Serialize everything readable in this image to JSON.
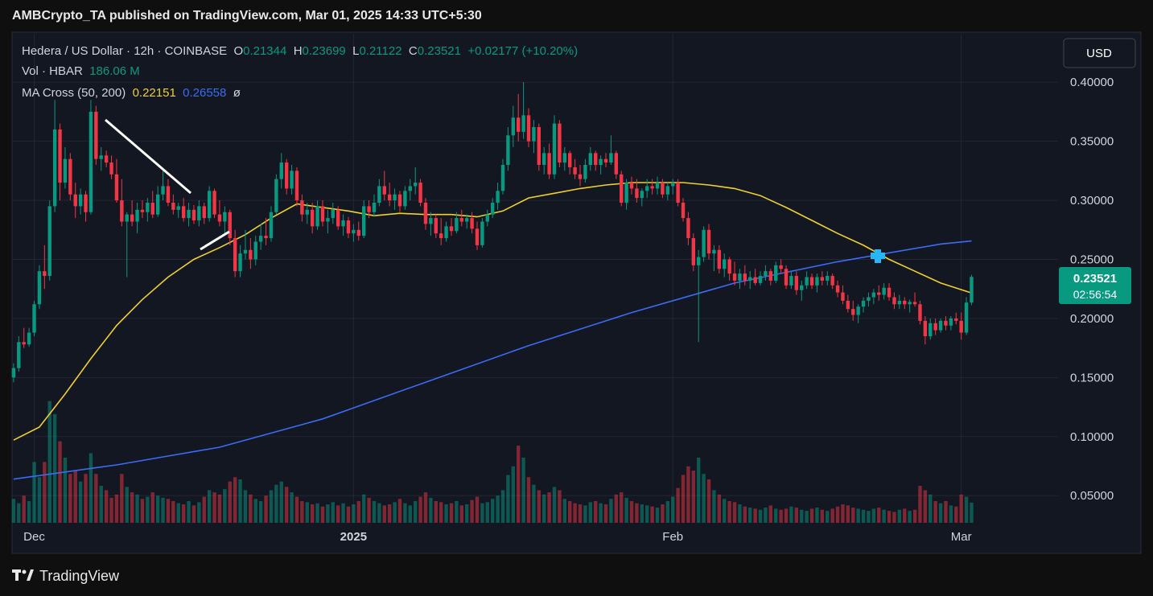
{
  "header": {
    "publisher": "AMBCrypto_TA published on TradingView.com, Mar 01, 2025 14:33 UTC+5:30",
    "currency_button": "USD",
    "logo": "TradingView"
  },
  "chart_data": {
    "type": "candlestick",
    "symbol": "Hedera / US Dollar · 12h · COINBASE",
    "ohlc_letters": [
      "O",
      "H",
      "L",
      "C"
    ],
    "change_label": "+0.02177 (+10.20%)",
    "volume_title": "Vol · HBAR",
    "volume_value_label": "186.06 M",
    "ma_title": "MA Cross (50, 200)",
    "ma_flag": "ø",
    "countdown": "02:56:54",
    "up_color": "#089981",
    "down_color": "#f23645",
    "xlim": [
      -0.3,
      202.8
    ],
    "xticks": [
      {
        "value": 4,
        "label": "Dec"
      },
      {
        "value": 66,
        "label": "2025"
      },
      {
        "value": 128,
        "label": "Feb"
      },
      {
        "value": 184,
        "label": "Mar"
      }
    ],
    "ylim": [
      0.027,
      0.441
    ],
    "yticks": [
      {
        "value": 0.05,
        "label": "0.05000"
      },
      {
        "value": 0.1,
        "label": "0.10000"
      },
      {
        "value": 0.15,
        "label": "0.15000"
      },
      {
        "value": 0.2,
        "label": "0.20000"
      },
      {
        "value": 0.25,
        "label": "0.25000"
      },
      {
        "value": 0.3,
        "label": "0.30000"
      },
      {
        "value": 0.35,
        "label": "0.35000"
      },
      {
        "value": 0.4,
        "label": "0.40000"
      }
    ],
    "grid": true,
    "volume_ylim": [
      0,
      4500
    ],
    "candles": [
      [
        0.15,
        0.162,
        0.146,
        0.158
      ],
      [
        0.158,
        0.185,
        0.155,
        0.18
      ],
      [
        0.18,
        0.192,
        0.175,
        0.178
      ],
      [
        0.178,
        0.192,
        0.176,
        0.188
      ],
      [
        0.188,
        0.215,
        0.185,
        0.212
      ],
      [
        0.212,
        0.245,
        0.208,
        0.24
      ],
      [
        0.24,
        0.262,
        0.225,
        0.236
      ],
      [
        0.236,
        0.3,
        0.232,
        0.295
      ],
      [
        0.295,
        0.385,
        0.29,
        0.36
      ],
      [
        0.36,
        0.365,
        0.3,
        0.315
      ],
      [
        0.315,
        0.345,
        0.31,
        0.335
      ],
      [
        0.335,
        0.34,
        0.3,
        0.305
      ],
      [
        0.305,
        0.315,
        0.285,
        0.295
      ],
      [
        0.295,
        0.31,
        0.288,
        0.305
      ],
      [
        0.305,
        0.308,
        0.282,
        0.29
      ],
      [
        0.29,
        0.385,
        0.288,
        0.375
      ],
      [
        0.375,
        0.38,
        0.33,
        0.335
      ],
      [
        0.335,
        0.345,
        0.325,
        0.338
      ],
      [
        0.338,
        0.342,
        0.328,
        0.332
      ],
      [
        0.332,
        0.338,
        0.318,
        0.322
      ],
      [
        0.322,
        0.335,
        0.298,
        0.3
      ],
      [
        0.3,
        0.318,
        0.278,
        0.282
      ],
      [
        0.282,
        0.29,
        0.235,
        0.288
      ],
      [
        0.288,
        0.3,
        0.278,
        0.282
      ],
      [
        0.282,
        0.298,
        0.272,
        0.292
      ],
      [
        0.292,
        0.3,
        0.285,
        0.29
      ],
      [
        0.29,
        0.302,
        0.282,
        0.298
      ],
      [
        0.298,
        0.308,
        0.285,
        0.288
      ],
      [
        0.288,
        0.312,
        0.286,
        0.305
      ],
      [
        0.305,
        0.325,
        0.3,
        0.312
      ],
      [
        0.312,
        0.318,
        0.295,
        0.298
      ],
      [
        0.298,
        0.305,
        0.288,
        0.292
      ],
      [
        0.292,
        0.298,
        0.285,
        0.295
      ],
      [
        0.295,
        0.302,
        0.282,
        0.285
      ],
      [
        0.285,
        0.298,
        0.278,
        0.292
      ],
      [
        0.292,
        0.296,
        0.28,
        0.283
      ],
      [
        0.283,
        0.3,
        0.278,
        0.295
      ],
      [
        0.295,
        0.298,
        0.28,
        0.285
      ],
      [
        0.285,
        0.312,
        0.282,
        0.308
      ],
      [
        0.308,
        0.31,
        0.285,
        0.288
      ],
      [
        0.288,
        0.3,
        0.278,
        0.282
      ],
      [
        0.282,
        0.295,
        0.27,
        0.29
      ],
      [
        0.29,
        0.292,
        0.262,
        0.268
      ],
      [
        0.268,
        0.275,
        0.235,
        0.24
      ],
      [
        0.24,
        0.262,
        0.235,
        0.255
      ],
      [
        0.255,
        0.275,
        0.25,
        0.258
      ],
      [
        0.258,
        0.268,
        0.242,
        0.25
      ],
      [
        0.25,
        0.27,
        0.245,
        0.265
      ],
      [
        0.265,
        0.28,
        0.258,
        0.27
      ],
      [
        0.27,
        0.285,
        0.262,
        0.268
      ],
      [
        0.268,
        0.295,
        0.265,
        0.29
      ],
      [
        0.29,
        0.322,
        0.288,
        0.318
      ],
      [
        0.318,
        0.34,
        0.31,
        0.332
      ],
      [
        0.332,
        0.335,
        0.305,
        0.31
      ],
      [
        0.31,
        0.33,
        0.305,
        0.325
      ],
      [
        0.325,
        0.328,
        0.295,
        0.3
      ],
      [
        0.3,
        0.305,
        0.282,
        0.288
      ],
      [
        0.288,
        0.298,
        0.28,
        0.292
      ],
      [
        0.292,
        0.298,
        0.272,
        0.278
      ],
      [
        0.278,
        0.3,
        0.275,
        0.295
      ],
      [
        0.295,
        0.3,
        0.278,
        0.282
      ],
      [
        0.282,
        0.292,
        0.272,
        0.285
      ],
      [
        0.285,
        0.298,
        0.28,
        0.292
      ],
      [
        0.292,
        0.295,
        0.275,
        0.278
      ],
      [
        0.278,
        0.288,
        0.27,
        0.283
      ],
      [
        0.283,
        0.286,
        0.268,
        0.272
      ],
      [
        0.272,
        0.28,
        0.265,
        0.275
      ],
      [
        0.275,
        0.282,
        0.266,
        0.27
      ],
      [
        0.27,
        0.3,
        0.268,
        0.295
      ],
      [
        0.295,
        0.3,
        0.285,
        0.29
      ],
      [
        0.29,
        0.305,
        0.286,
        0.298
      ],
      [
        0.298,
        0.318,
        0.295,
        0.312
      ],
      [
        0.312,
        0.325,
        0.3,
        0.305
      ],
      [
        0.305,
        0.315,
        0.295,
        0.3
      ],
      [
        0.3,
        0.31,
        0.292,
        0.305
      ],
      [
        0.305,
        0.308,
        0.29,
        0.295
      ],
      [
        0.295,
        0.312,
        0.292,
        0.308
      ],
      [
        0.308,
        0.318,
        0.3,
        0.312
      ],
      [
        0.312,
        0.328,
        0.305,
        0.315
      ],
      [
        0.315,
        0.318,
        0.295,
        0.298
      ],
      [
        0.298,
        0.302,
        0.275,
        0.28
      ],
      [
        0.28,
        0.29,
        0.27,
        0.285
      ],
      [
        0.285,
        0.288,
        0.268,
        0.272
      ],
      [
        0.272,
        0.285,
        0.262,
        0.268
      ],
      [
        0.268,
        0.282,
        0.265,
        0.278
      ],
      [
        0.278,
        0.285,
        0.27,
        0.274
      ],
      [
        0.274,
        0.29,
        0.272,
        0.285
      ],
      [
        0.285,
        0.292,
        0.278,
        0.282
      ],
      [
        0.282,
        0.288,
        0.276,
        0.285
      ],
      [
        0.285,
        0.29,
        0.272,
        0.276
      ],
      [
        0.276,
        0.282,
        0.258,
        0.262
      ],
      [
        0.262,
        0.285,
        0.26,
        0.282
      ],
      [
        0.282,
        0.292,
        0.278,
        0.288
      ],
      [
        0.288,
        0.302,
        0.285,
        0.298
      ],
      [
        0.298,
        0.315,
        0.292,
        0.308
      ],
      [
        0.308,
        0.335,
        0.305,
        0.33
      ],
      [
        0.33,
        0.362,
        0.325,
        0.355
      ],
      [
        0.355,
        0.38,
        0.345,
        0.37
      ],
      [
        0.37,
        0.39,
        0.35,
        0.358
      ],
      [
        0.358,
        0.4,
        0.352,
        0.372
      ],
      [
        0.372,
        0.378,
        0.345,
        0.35
      ],
      [
        0.35,
        0.368,
        0.34,
        0.362
      ],
      [
        0.362,
        0.365,
        0.325,
        0.33
      ],
      [
        0.33,
        0.345,
        0.322,
        0.34
      ],
      [
        0.34,
        0.348,
        0.318,
        0.322
      ],
      [
        0.322,
        0.372,
        0.318,
        0.365
      ],
      [
        0.365,
        0.368,
        0.328,
        0.332
      ],
      [
        0.332,
        0.345,
        0.325,
        0.34
      ],
      [
        0.34,
        0.342,
        0.322,
        0.328
      ],
      [
        0.328,
        0.335,
        0.318,
        0.322
      ],
      [
        0.322,
        0.33,
        0.312,
        0.318
      ],
      [
        0.318,
        0.335,
        0.315,
        0.33
      ],
      [
        0.33,
        0.345,
        0.325,
        0.34
      ],
      [
        0.34,
        0.342,
        0.325,
        0.33
      ],
      [
        0.33,
        0.338,
        0.322,
        0.335
      ],
      [
        0.335,
        0.34,
        0.328,
        0.332
      ],
      [
        0.332,
        0.355,
        0.33,
        0.34
      ],
      [
        0.34,
        0.342,
        0.318,
        0.322
      ],
      [
        0.322,
        0.325,
        0.295,
        0.298
      ],
      [
        0.298,
        0.318,
        0.292,
        0.315
      ],
      [
        0.315,
        0.32,
        0.305,
        0.31
      ],
      [
        0.31,
        0.318,
        0.298,
        0.302
      ],
      [
        0.302,
        0.31,
        0.295,
        0.308
      ],
      [
        0.308,
        0.318,
        0.302,
        0.312
      ],
      [
        0.312,
        0.318,
        0.305,
        0.31
      ],
      [
        0.31,
        0.32,
        0.305,
        0.315
      ],
      [
        0.315,
        0.318,
        0.302,
        0.305
      ],
      [
        0.305,
        0.315,
        0.3,
        0.312
      ],
      [
        0.312,
        0.318,
        0.305,
        0.315
      ],
      [
        0.315,
        0.318,
        0.295,
        0.298
      ],
      [
        0.298,
        0.302,
        0.282,
        0.285
      ],
      [
        0.285,
        0.29,
        0.262,
        0.268
      ],
      [
        0.268,
        0.272,
        0.24,
        0.245
      ],
      [
        0.245,
        0.258,
        0.18,
        0.252
      ],
      [
        0.252,
        0.278,
        0.248,
        0.275
      ],
      [
        0.275,
        0.28,
        0.25,
        0.255
      ],
      [
        0.255,
        0.262,
        0.24,
        0.258
      ],
      [
        0.258,
        0.262,
        0.238,
        0.242
      ],
      [
        0.242,
        0.255,
        0.235,
        0.25
      ],
      [
        0.25,
        0.252,
        0.232,
        0.238
      ],
      [
        0.238,
        0.248,
        0.228,
        0.232
      ],
      [
        0.232,
        0.242,
        0.225,
        0.238
      ],
      [
        0.238,
        0.245,
        0.228,
        0.232
      ],
      [
        0.232,
        0.24,
        0.225,
        0.235
      ],
      [
        0.235,
        0.242,
        0.228,
        0.23
      ],
      [
        0.23,
        0.24,
        0.228,
        0.236
      ],
      [
        0.236,
        0.245,
        0.232,
        0.24
      ],
      [
        0.24,
        0.242,
        0.228,
        0.232
      ],
      [
        0.232,
        0.248,
        0.23,
        0.245
      ],
      [
        0.245,
        0.25,
        0.238,
        0.242
      ],
      [
        0.242,
        0.245,
        0.225,
        0.228
      ],
      [
        0.228,
        0.24,
        0.225,
        0.236
      ],
      [
        0.236,
        0.24,
        0.22,
        0.224
      ],
      [
        0.224,
        0.232,
        0.215,
        0.228
      ],
      [
        0.228,
        0.24,
        0.225,
        0.235
      ],
      [
        0.235,
        0.238,
        0.225,
        0.228
      ],
      [
        0.228,
        0.238,
        0.222,
        0.235
      ],
      [
        0.235,
        0.24,
        0.228,
        0.232
      ],
      [
        0.232,
        0.24,
        0.228,
        0.236
      ],
      [
        0.236,
        0.238,
        0.225,
        0.228
      ],
      [
        0.228,
        0.232,
        0.218,
        0.222
      ],
      [
        0.222,
        0.228,
        0.212,
        0.215
      ],
      [
        0.215,
        0.22,
        0.205,
        0.208
      ],
      [
        0.208,
        0.215,
        0.198,
        0.203
      ],
      [
        0.203,
        0.212,
        0.196,
        0.21
      ],
      [
        0.21,
        0.218,
        0.205,
        0.215
      ],
      [
        0.215,
        0.222,
        0.21,
        0.218
      ],
      [
        0.218,
        0.225,
        0.212,
        0.222
      ],
      [
        0.222,
        0.228,
        0.215,
        0.22
      ],
      [
        0.22,
        0.23,
        0.216,
        0.226
      ],
      [
        0.226,
        0.23,
        0.215,
        0.218
      ],
      [
        0.218,
        0.222,
        0.208,
        0.212
      ],
      [
        0.212,
        0.22,
        0.208,
        0.215
      ],
      [
        0.215,
        0.218,
        0.208,
        0.212
      ],
      [
        0.212,
        0.216,
        0.205,
        0.214
      ],
      [
        0.214,
        0.222,
        0.21,
        0.212
      ],
      [
        0.212,
        0.215,
        0.195,
        0.198
      ],
      [
        0.198,
        0.202,
        0.178,
        0.185
      ],
      [
        0.185,
        0.2,
        0.182,
        0.196
      ],
      [
        0.196,
        0.2,
        0.186,
        0.19
      ],
      [
        0.19,
        0.2,
        0.188,
        0.198
      ],
      [
        0.198,
        0.202,
        0.19,
        0.194
      ],
      [
        0.194,
        0.202,
        0.19,
        0.2
      ],
      [
        0.2,
        0.205,
        0.195,
        0.198
      ],
      [
        0.198,
        0.205,
        0.182,
        0.188
      ],
      [
        0.188,
        0.218,
        0.186,
        0.21344
      ],
      [
        0.21344,
        0.23699,
        0.21122,
        0.23521
      ]
    ],
    "volumes": [
      220,
      180,
      250,
      200,
      560,
      420,
      560,
      1120,
      1000,
      750,
      600,
      450,
      480,
      380,
      450,
      640,
      450,
      340,
      300,
      230,
      260,
      450,
      330,
      280,
      260,
      220,
      240,
      280,
      250,
      230,
      220,
      200,
      180,
      170,
      200,
      160,
      190,
      240,
      300,
      280,
      260,
      310,
      380,
      420,
      400,
      300,
      260,
      220,
      200,
      250,
      300,
      350,
      380,
      330,
      280,
      240,
      200,
      190,
      170,
      180,
      150,
      170,
      190,
      160,
      180,
      150,
      170,
      200,
      260,
      230,
      200,
      180,
      160,
      170,
      190,
      220,
      180,
      160,
      200,
      240,
      280,
      230,
      200,
      190,
      170,
      180,
      200,
      160,
      170,
      210,
      240,
      180,
      190,
      220,
      250,
      300,
      440,
      520,
      710,
      600,
      420,
      350,
      300,
      260,
      280,
      330,
      300,
      220,
      200,
      180,
      170,
      160,
      190,
      200,
      180,
      170,
      220,
      260,
      280,
      230,
      200,
      180,
      170,
      160,
      150,
      140,
      170,
      200,
      240,
      320,
      440,
      520,
      480,
      600,
      450,
      400,
      300,
      260,
      220,
      200,
      190,
      170,
      150,
      140,
      130,
      120,
      140,
      160,
      130,
      120,
      130,
      150,
      140,
      120,
      110,
      130,
      140,
      120,
      110,
      130,
      150,
      170,
      160,
      140,
      130,
      120,
      110,
      130,
      140,
      120,
      110,
      100,
      120,
      130,
      110,
      120,
      340,
      300,
      260,
      200,
      180,
      200,
      160,
      150,
      260,
      240,
      186.06
    ],
    "ma_series": [
      {
        "color": "#f0d02c",
        "x": [
          0,
          5,
          10,
          15,
          20,
          25,
          30,
          35,
          40,
          45,
          50,
          55,
          60,
          65,
          70,
          75,
          80,
          85,
          90,
          95,
          100,
          105,
          110,
          115,
          120,
          125,
          130,
          135,
          140,
          145,
          150,
          155,
          160,
          165,
          170,
          175,
          180,
          186
        ],
        "values": [
          0.097,
          0.108,
          0.136,
          0.166,
          0.194,
          0.216,
          0.235,
          0.25,
          0.26,
          0.271,
          0.285,
          0.297,
          0.294,
          0.291,
          0.287,
          0.289,
          0.288,
          0.288,
          0.286,
          0.291,
          0.302,
          0.306,
          0.31,
          0.313,
          0.315,
          0.315,
          0.315,
          0.313,
          0.31,
          0.304,
          0.294,
          0.283,
          0.272,
          0.262,
          0.25,
          0.24,
          0.23,
          0.22151
        ]
      },
      {
        "color": "#3b6cf3",
        "x": [
          0,
          20,
          40,
          60,
          80,
          100,
          120,
          140,
          160,
          180,
          186
        ],
        "values": [
          0.064,
          0.076,
          0.091,
          0.115,
          0.146,
          0.177,
          0.205,
          0.23,
          0.248,
          0.263,
          0.26558
        ]
      }
    ]
  }
}
